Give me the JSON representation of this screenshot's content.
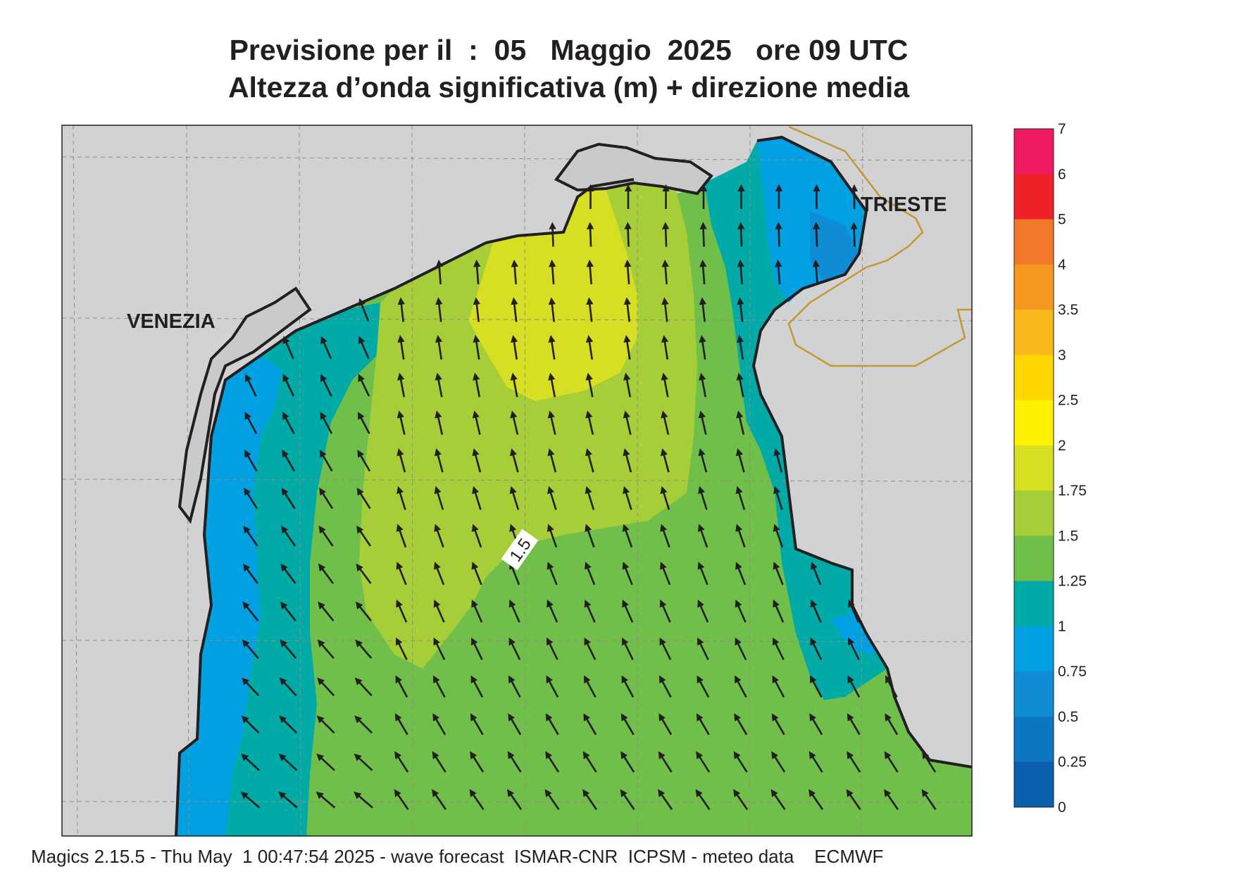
{
  "header": {
    "title_line1": "Previsione per il  :  05   Maggio  2025   ore 09 UTC",
    "title_line2": "Altezza d’onda significativa (m) + direzione media"
  },
  "map": {
    "cities": [
      {
        "name": "VENEZIA"
      },
      {
        "name": "TRIESTE"
      }
    ],
    "contour_label": "1.5",
    "land_color": "#d1d2d4",
    "coast_color": "#231f20",
    "border_color": "#c8962e",
    "arrow_color": "#231f20"
  },
  "colorbar": {
    "ticks": [
      "7",
      "6",
      "5",
      "4",
      "3.5",
      "3",
      "2.5",
      "2",
      "1.75",
      "1.5",
      "1.25",
      "1",
      "0.75",
      "0.5",
      "0.25",
      "0"
    ],
    "colors": [
      "#ee1b61",
      "#ed2127",
      "#f1782a",
      "#f6981f",
      "#f9b91a",
      "#ffd600",
      "#fff200",
      "#d7df23",
      "#a6ce39",
      "#70bf4a",
      "#00aaa7",
      "#00a0e3",
      "#0f8cd6",
      "#0c76c3",
      "#0a5fad"
    ]
  },
  "footer": {
    "text": "Magics 2.15.5 - Thu May  1 00:47:54 2025 - wave forecast  ISMAR-CNR  ICPSM - meteo data    ECMWF"
  }
}
